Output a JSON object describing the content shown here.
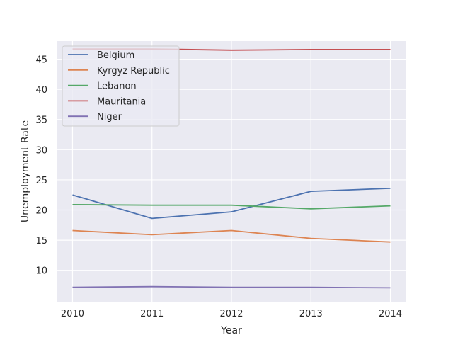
{
  "chart_data": {
    "type": "line",
    "title": "",
    "xlabel": "Year",
    "ylabel": "Unemployment Rate",
    "x": [
      2010,
      2011,
      2012,
      2013,
      2014
    ],
    "xlim": [
      2009.8,
      2014.2
    ],
    "ylim": [
      4.8,
      48.0
    ],
    "x_ticks": [
      "2010",
      "2011",
      "2012",
      "2013",
      "2014"
    ],
    "y_ticks": [
      10,
      15,
      20,
      25,
      30,
      35,
      40,
      45
    ],
    "grid": true,
    "legend_position": "top-left",
    "series": [
      {
        "name": "Belgium",
        "color": "#4c72b0",
        "values": [
          22.5,
          18.6,
          19.7,
          23.1,
          23.6
        ]
      },
      {
        "name": "Kyrgyz Republic",
        "color": "#dd8452",
        "values": [
          16.6,
          15.9,
          16.6,
          15.3,
          14.7
        ]
      },
      {
        "name": "Lebanon",
        "color": "#55a868",
        "values": [
          20.9,
          20.8,
          20.8,
          20.2,
          20.7
        ]
      },
      {
        "name": "Mauritania",
        "color": "#c44e52",
        "values": [
          46.7,
          46.7,
          46.5,
          46.6,
          46.6
        ]
      },
      {
        "name": "Niger",
        "color": "#8172b3",
        "values": [
          7.2,
          7.3,
          7.2,
          7.2,
          7.1
        ]
      }
    ]
  }
}
